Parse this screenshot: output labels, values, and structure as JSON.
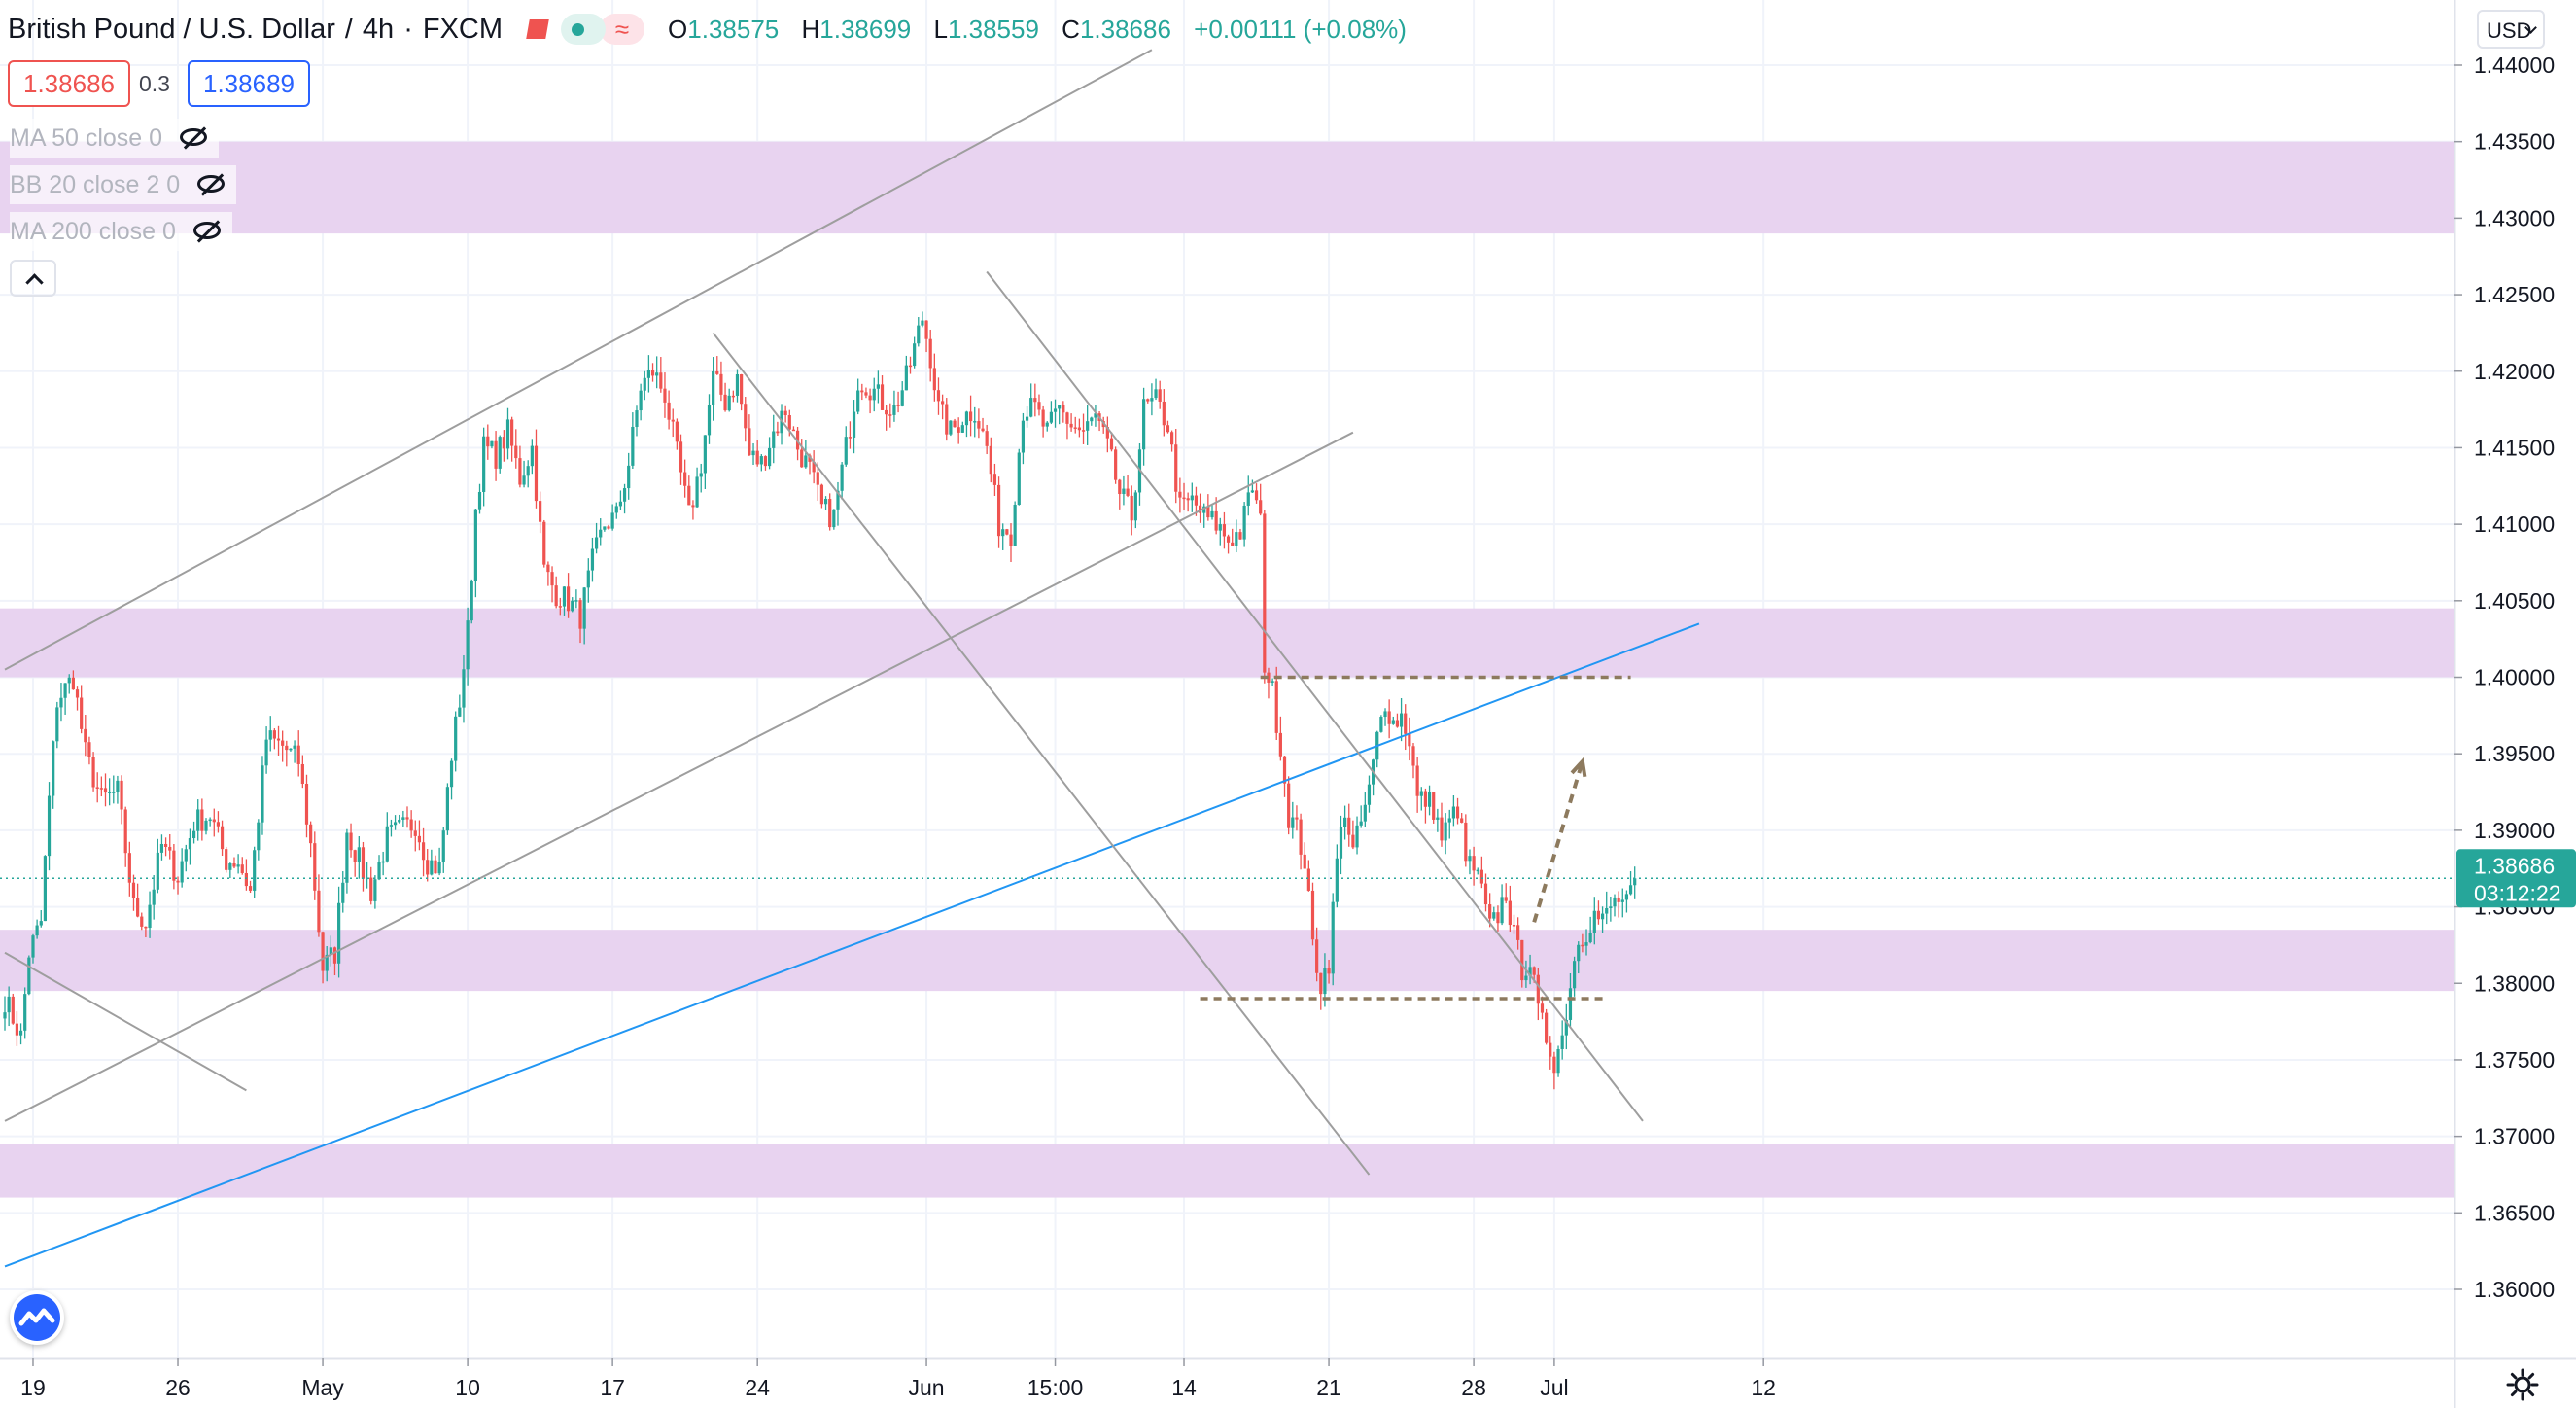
{
  "header": {
    "symbol": "British Pound / U.S. Dollar",
    "interval": "4h",
    "exchange": "FXCM",
    "ohlc": {
      "o_label": "O",
      "o": "1.38575",
      "h_label": "H",
      "h": "1.38699",
      "l_label": "L",
      "l": "1.38559",
      "c_label": "C",
      "c": "1.38686",
      "change": "+0.00111 (+0.08%)"
    },
    "bid": "1.38686",
    "spread": "0.3",
    "ask": "1.38689"
  },
  "indicators": [
    {
      "label": "MA 50 close 0"
    },
    {
      "label": "BB 20 close 2 0"
    },
    {
      "label": "MA 200 close 0"
    }
  ],
  "currency_selector": "USD",
  "last_price": {
    "value": "1.38686",
    "countdown": "03:12:22"
  },
  "colors": {
    "up": "#26a69a",
    "down": "#ef5350",
    "zone": "#e7d1ef",
    "trendline_blue": "#2196f3",
    "channel_gray": "#9e9e9e",
    "level_dashed": "#8d7a5e"
  },
  "chart_data": {
    "type": "candlestick",
    "ylim": [
      1.3555,
      1.4415
    ],
    "y_ticks": [
      "1.44000",
      "1.43500",
      "1.43000",
      "1.42500",
      "1.42000",
      "1.41500",
      "1.41000",
      "1.40500",
      "1.40000",
      "1.39500",
      "1.39000",
      "1.38500",
      "1.38000",
      "1.37500",
      "1.37000",
      "1.36500",
      "1.36000"
    ],
    "x_ticks": [
      {
        "label": "19",
        "bar": 7
      },
      {
        "label": "26",
        "bar": 43
      },
      {
        "label": "May",
        "bar": 79
      },
      {
        "label": "10",
        "bar": 115
      },
      {
        "label": "17",
        "bar": 151
      },
      {
        "label": "24",
        "bar": 187
      },
      {
        "label": "Jun",
        "bar": 229
      },
      {
        "label": "15:00",
        "bar": 261
      },
      {
        "label": "14",
        "bar": 293
      },
      {
        "label": "21",
        "bar": 329
      },
      {
        "label": "28",
        "bar": 365
      },
      {
        "label": "Jul",
        "bar": 385
      },
      {
        "label": "12",
        "bar": 437
      }
    ],
    "bars_shown": 406,
    "anchors": [
      [
        0,
        1.379
      ],
      [
        4,
        1.3765
      ],
      [
        6,
        1.382
      ],
      [
        9,
        1.384
      ],
      [
        11,
        1.392
      ],
      [
        13,
        1.3985
      ],
      [
        17,
        1.4
      ],
      [
        20,
        1.395
      ],
      [
        24,
        1.392
      ],
      [
        28,
        1.3925
      ],
      [
        32,
        1.385
      ],
      [
        35,
        1.384
      ],
      [
        39,
        1.389
      ],
      [
        43,
        1.387
      ],
      [
        47,
        1.3905
      ],
      [
        51,
        1.391
      ],
      [
        55,
        1.388
      ],
      [
        58,
        1.388
      ],
      [
        61,
        1.386
      ],
      [
        65,
        1.396
      ],
      [
        69,
        1.3955
      ],
      [
        73,
        1.3945
      ],
      [
        76,
        1.389
      ],
      [
        79,
        1.381
      ],
      [
        82,
        1.382
      ],
      [
        85,
        1.39
      ],
      [
        88,
        1.388
      ],
      [
        91,
        1.386
      ],
      [
        95,
        1.3895
      ],
      [
        98,
        1.39
      ],
      [
        102,
        1.3905
      ],
      [
        105,
        1.388
      ],
      [
        108,
        1.3875
      ],
      [
        111,
        1.395
      ],
      [
        113,
        1.3985
      ],
      [
        115,
        1.403
      ],
      [
        117,
        1.411
      ],
      [
        119,
        1.415
      ],
      [
        122,
        1.4145
      ],
      [
        125,
        1.416
      ],
      [
        128,
        1.413
      ],
      [
        131,
        1.415
      ],
      [
        134,
        1.407
      ],
      [
        137,
        1.4055
      ],
      [
        140,
        1.405
      ],
      [
        143,
        1.404
      ],
      [
        146,
        1.4075
      ],
      [
        149,
        1.41
      ],
      [
        152,
        1.4105
      ],
      [
        155,
        1.414
      ],
      [
        158,
        1.419
      ],
      [
        161,
        1.42
      ],
      [
        164,
        1.4185
      ],
      [
        167,
        1.4145
      ],
      [
        170,
        1.4105
      ],
      [
        173,
        1.414
      ],
      [
        176,
        1.4195
      ],
      [
        179,
        1.418
      ],
      [
        182,
        1.4195
      ],
      [
        185,
        1.4145
      ],
      [
        188,
        1.414
      ],
      [
        191,
        1.416
      ],
      [
        194,
        1.4175
      ],
      [
        197,
        1.415
      ],
      [
        200,
        1.4135
      ],
      [
        203,
        1.411
      ],
      [
        206,
        1.4105
      ],
      [
        209,
        1.415
      ],
      [
        212,
        1.4195
      ],
      [
        215,
        1.419
      ],
      [
        218,
        1.418
      ],
      [
        221,
        1.4175
      ],
      [
        224,
        1.4195
      ],
      [
        226,
        1.4215
      ],
      [
        228,
        1.4235
      ],
      [
        230,
        1.421
      ],
      [
        232,
        1.4175
      ],
      [
        235,
        1.416
      ],
      [
        238,
        1.417
      ],
      [
        241,
        1.4175
      ],
      [
        244,
        1.415
      ],
      [
        247,
        1.41
      ],
      [
        250,
        1.4095
      ],
      [
        253,
        1.4175
      ],
      [
        256,
        1.4175
      ],
      [
        259,
        1.416
      ],
      [
        262,
        1.4175
      ],
      [
        265,
        1.4165
      ],
      [
        268,
        1.416
      ],
      [
        271,
        1.417
      ],
      [
        274,
        1.415
      ],
      [
        277,
        1.412
      ],
      [
        280,
        1.4105
      ],
      [
        283,
        1.4175
      ],
      [
        286,
        1.418
      ],
      [
        289,
        1.4165
      ],
      [
        292,
        1.411
      ],
      [
        295,
        1.4115
      ],
      [
        298,
        1.4105
      ],
      [
        301,
        1.41
      ],
      [
        304,
        1.409
      ],
      [
        307,
        1.4095
      ],
      [
        310,
        1.4125
      ],
      [
        312,
        1.41
      ],
      [
        313,
        1.401
      ],
      [
        315,
        1.399
      ],
      [
        317,
        1.3955
      ],
      [
        319,
        1.391
      ],
      [
        321,
        1.39
      ],
      [
        323,
        1.388
      ],
      [
        325,
        1.3825
      ],
      [
        327,
        1.38
      ],
      [
        329,
        1.3815
      ],
      [
        331,
        1.388
      ],
      [
        333,
        1.3915
      ],
      [
        335,
        1.3885
      ],
      [
        337,
        1.3905
      ],
      [
        339,
        1.3925
      ],
      [
        341,
        1.396
      ],
      [
        343,
        1.3985
      ],
      [
        345,
        1.397
      ],
      [
        347,
        1.3975
      ],
      [
        349,
        1.396
      ],
      [
        351,
        1.392
      ],
      [
        353,
        1.392
      ],
      [
        355,
        1.3915
      ],
      [
        357,
        1.3895
      ],
      [
        359,
        1.3905
      ],
      [
        361,
        1.3915
      ],
      [
        363,
        1.388
      ],
      [
        365,
        1.3875
      ],
      [
        367,
        1.386
      ],
      [
        369,
        1.3835
      ],
      [
        371,
        1.3845
      ],
      [
        373,
        1.386
      ],
      [
        375,
        1.383
      ],
      [
        377,
        1.381
      ],
      [
        379,
        1.3815
      ],
      [
        381,
        1.378
      ],
      [
        383,
        1.3765
      ],
      [
        385,
        1.375
      ],
      [
        387,
        1.3765
      ],
      [
        389,
        1.38
      ],
      [
        391,
        1.383
      ],
      [
        393,
        1.3835
      ],
      [
        395,
        1.3845
      ],
      [
        397,
        1.384
      ],
      [
        399,
        1.385
      ],
      [
        401,
        1.3855
      ],
      [
        403,
        1.385
      ],
      [
        405,
        1.38686
      ]
    ],
    "zones": [
      {
        "from": 1.429,
        "to": 1.435
      },
      {
        "from": 1.4,
        "to": 1.4045
      },
      {
        "from": 1.3795,
        "to": 1.3835
      },
      {
        "from": 1.366,
        "to": 1.3695
      }
    ],
    "trendlines": [
      {
        "name": "channel-upper",
        "from": {
          "bar": 0,
          "price": 1.4005
        },
        "to": {
          "bar": 285,
          "price": 1.441
        },
        "style": "gray"
      },
      {
        "name": "channel-lower",
        "from": {
          "bar": 0,
          "price": 1.371
        },
        "to": {
          "bar": 335,
          "price": 1.416
        },
        "style": "gray"
      },
      {
        "name": "long-trend",
        "from": {
          "bar": 0,
          "price": 1.3615
        },
        "to": {
          "bar": 421,
          "price": 1.4035
        },
        "style": "blue"
      },
      {
        "name": "left-descending",
        "from": {
          "bar": 0,
          "price": 1.382
        },
        "to": {
          "bar": 60,
          "price": 1.373
        },
        "style": "gray"
      },
      {
        "name": "mid-descending",
        "from": {
          "bar": 176,
          "price": 1.4225
        },
        "to": {
          "bar": 339,
          "price": 1.3675
        },
        "style": "gray"
      },
      {
        "name": "right-descending",
        "from": {
          "bar": 244,
          "price": 1.4265
        },
        "to": {
          "bar": 407,
          "price": 1.371
        },
        "style": "gray"
      }
    ],
    "levels": [
      {
        "price": 1.4,
        "from_bar": 312,
        "to_bar": 404
      },
      {
        "price": 1.379,
        "from_bar": 297,
        "to_bar": 398
      }
    ],
    "projection": {
      "from": {
        "bar": 380,
        "price": 1.384
      },
      "to": {
        "bar": 392,
        "price": 1.3945
      }
    }
  }
}
